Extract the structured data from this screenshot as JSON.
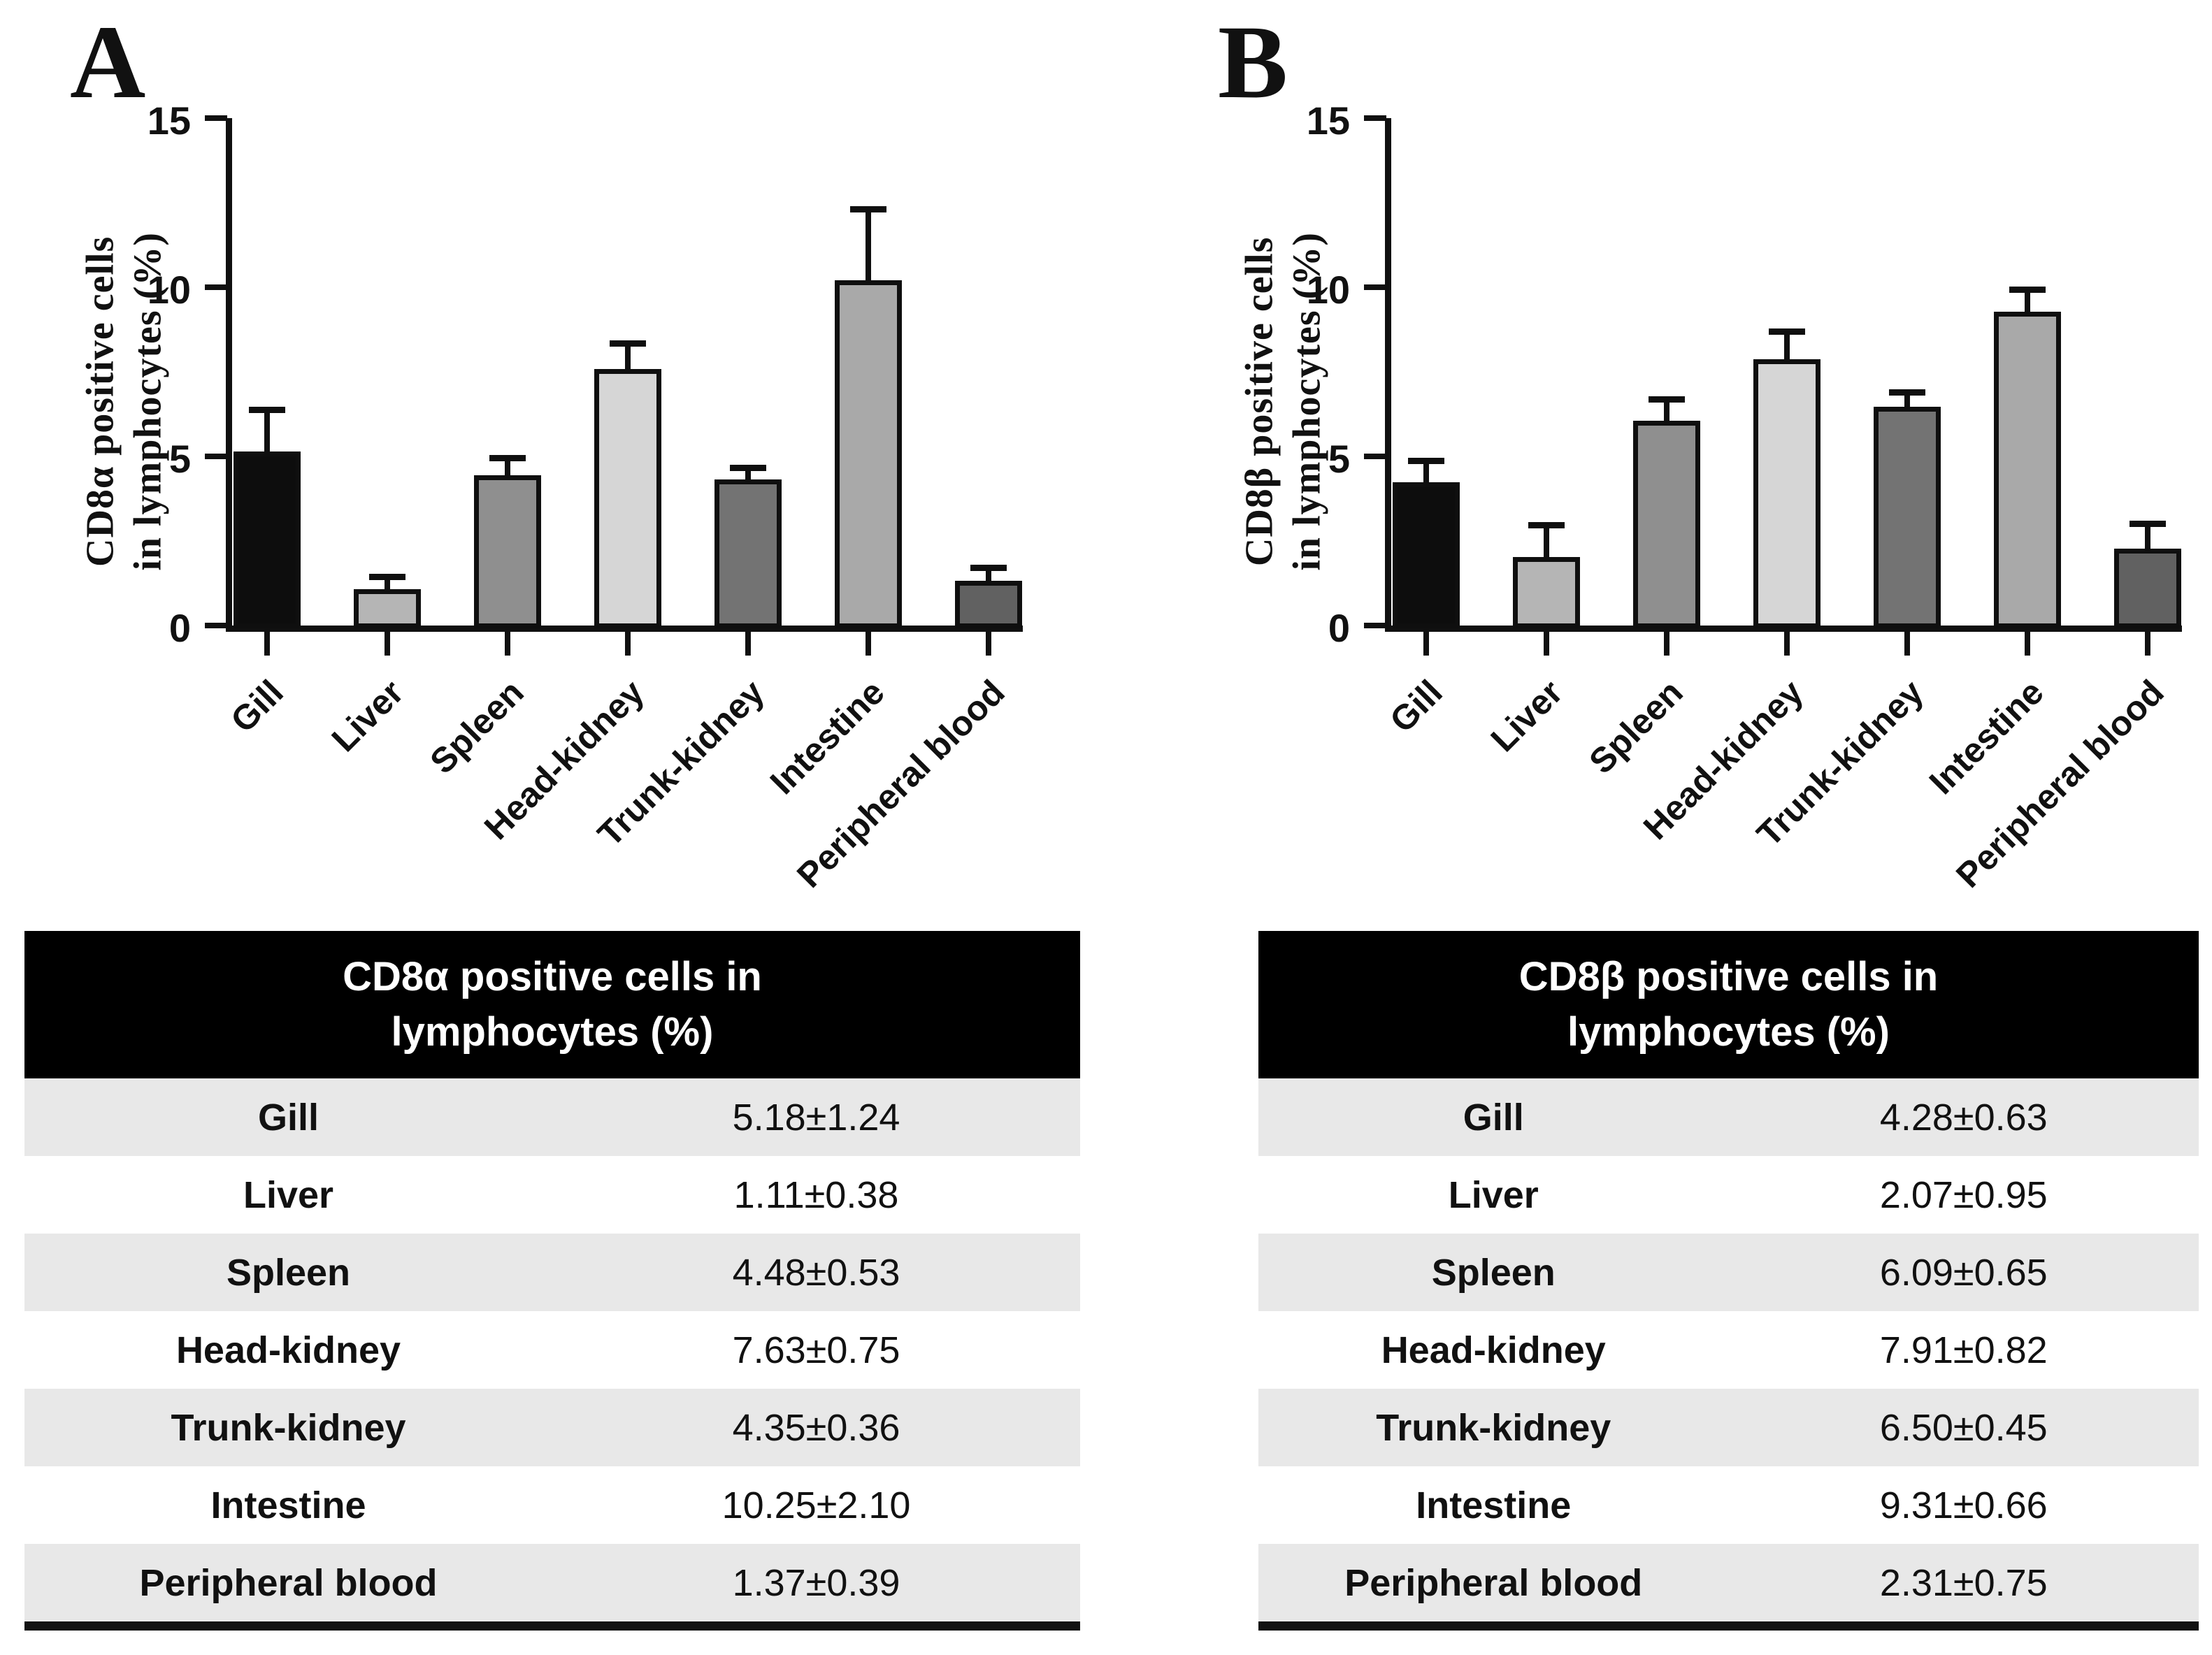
{
  "figure": {
    "panels": [
      {
        "letter": "A",
        "y_axis_title_lines": [
          "CD8α positive cells",
          "in lymphocytes (%)"
        ]
      },
      {
        "letter": "B",
        "y_axis_title_lines": [
          "CD8β positive cells",
          "in lymphocytes (%)"
        ]
      }
    ]
  },
  "chart_data": [
    {
      "type": "bar",
      "title": "",
      "categories": [
        "Gill",
        "Liver",
        "Spleen",
        "Head-kidney",
        "Trunk-kidney",
        "Intestine",
        "Peripheral blood"
      ],
      "values": [
        5.18,
        1.11,
        4.48,
        7.63,
        4.35,
        10.25,
        1.37
      ],
      "errors": [
        1.24,
        0.38,
        0.53,
        0.75,
        0.36,
        2.1,
        0.39
      ],
      "ylabel": "CD8α positive cells in lymphocytes (%)",
      "xlabel": "",
      "ylim": [
        0,
        15
      ],
      "yticks": [
        0,
        5,
        10,
        15
      ],
      "grid": false,
      "legend_position": "none",
      "bar_colors": [
        "#0d0d0d",
        "#b5b5b5",
        "#8f8f8f",
        "#d6d6d6",
        "#737373",
        "#a9a9a9",
        "#616161"
      ],
      "error_bar_color": "#0f0f0f"
    },
    {
      "type": "bar",
      "title": "",
      "categories": [
        "Gill",
        "Liver",
        "Spleen",
        "Head-kidney",
        "Trunk-kidney",
        "Intestine",
        "Peripheral blood"
      ],
      "values": [
        4.28,
        2.07,
        6.09,
        7.91,
        6.5,
        9.31,
        2.31
      ],
      "errors": [
        0.63,
        0.95,
        0.65,
        0.82,
        0.45,
        0.66,
        0.75
      ],
      "ylabel": "CD8β positive cells in lymphocytes (%)",
      "xlabel": "",
      "ylim": [
        0,
        15
      ],
      "yticks": [
        0,
        5,
        10,
        15
      ],
      "grid": false,
      "legend_position": "none",
      "bar_colors": [
        "#0d0d0d",
        "#b5b5b5",
        "#8f8f8f",
        "#d6d6d6",
        "#737373",
        "#a9a9a9",
        "#616161"
      ],
      "error_bar_color": "#0f0f0f"
    }
  ],
  "tables": [
    {
      "header_lines": [
        "CD8α positive cells in",
        "lymphocytes (%)"
      ],
      "rows": [
        {
          "label": "Gill",
          "value": "5.18±1.24"
        },
        {
          "label": "Liver",
          "value": "1.11±0.38"
        },
        {
          "label": "Spleen",
          "value": "4.48±0.53"
        },
        {
          "label": "Head-kidney",
          "value": "7.63±0.75"
        },
        {
          "label": "Trunk-kidney",
          "value": "4.35±0.36"
        },
        {
          "label": "Intestine",
          "value": "10.25±2.10"
        },
        {
          "label": "Peripheral blood",
          "value": "1.37±0.39"
        }
      ]
    },
    {
      "header_lines": [
        "CD8β positive cells in",
        "lymphocytes (%)"
      ],
      "rows": [
        {
          "label": "Gill",
          "value": "4.28±0.63"
        },
        {
          "label": "Liver",
          "value": "2.07±0.95"
        },
        {
          "label": "Spleen",
          "value": "6.09±0.65"
        },
        {
          "label": "Head-kidney",
          "value": "7.91±0.82"
        },
        {
          "label": "Trunk-kidney",
          "value": "6.50±0.45"
        },
        {
          "label": "Intestine",
          "value": "9.31±0.66"
        },
        {
          "label": "Peripheral blood",
          "value": "2.31±0.75"
        }
      ]
    }
  ],
  "colors": {
    "background": "#ffffff",
    "axis": "#101010",
    "table_header_bg": "#000000",
    "table_header_text": "#ffffff",
    "table_row_alt_bg": "#e8e8e8",
    "table_row_bg": "#ffffff",
    "table_bottom_border": "#121212"
  }
}
